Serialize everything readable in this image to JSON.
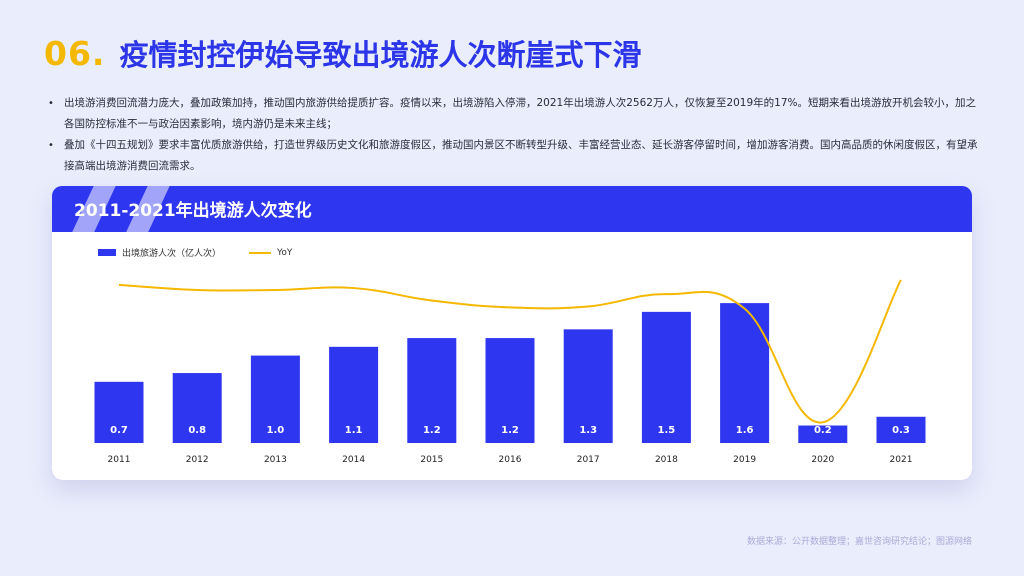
{
  "title": {
    "number": "06.",
    "text": "疫情封控伊始导致出境游人次断崖式下滑"
  },
  "bullets": [
    "出境游消费回流潜力庞大，叠加政策加持，推动国内旅游供给提质扩容。疫情以来，出境游陷入停滞，2021年出境游人次2562万人，仅恢复至2019年的17%。短期来看出境游放开机会较小，加之各国防控标准不一与政治因素影响，境内游仍是未来主线；",
    "叠加《十四五规划》要求丰富优质旅游供给，打造世界级历史文化和旅游度假区，推动国内景区不断转型升级、丰富经营业态、延长游客停留时间，增加游客消费。国内高品质的休闲度假区，有望承接高端出境游消费回流需求。"
  ],
  "footer": "数据来源：公开数据整理；嘉世咨询研究结论；图源网络",
  "colors": {
    "accent_blue": "#2f36f0",
    "accent_yellow": "#f5b800",
    "title_blue": "#2c35e8"
  },
  "chart_data": {
    "type": "bar",
    "title": "2011-2021年出境游人次变化",
    "categories": [
      "2011",
      "2012",
      "2013",
      "2014",
      "2015",
      "2016",
      "2017",
      "2018",
      "2019",
      "2020",
      "2021"
    ],
    "series": [
      {
        "name": "出境旅游人次（亿人次）",
        "type": "bar",
        "values": [
          0.7,
          0.8,
          1.0,
          1.1,
          1.2,
          1.2,
          1.3,
          1.5,
          1.6,
          0.2,
          0.3
        ],
        "labels": [
          "0.7",
          "0.8",
          "1.0",
          "1.1",
          "1.2",
          "1.2",
          "1.3",
          "1.5",
          "1.6",
          "0.2",
          "0.3"
        ]
      },
      {
        "name": "YoY",
        "type": "line",
        "values": [
          22,
          18,
          18,
          19.5,
          9.7,
          4.3,
          5,
          14.7,
          3.3,
          -86.1,
          26
        ]
      }
    ],
    "bar_ylim": [
      0,
      1.75
    ],
    "line_ylim": [
      -100,
      40
    ],
    "grid": false,
    "legend": "top-left"
  }
}
